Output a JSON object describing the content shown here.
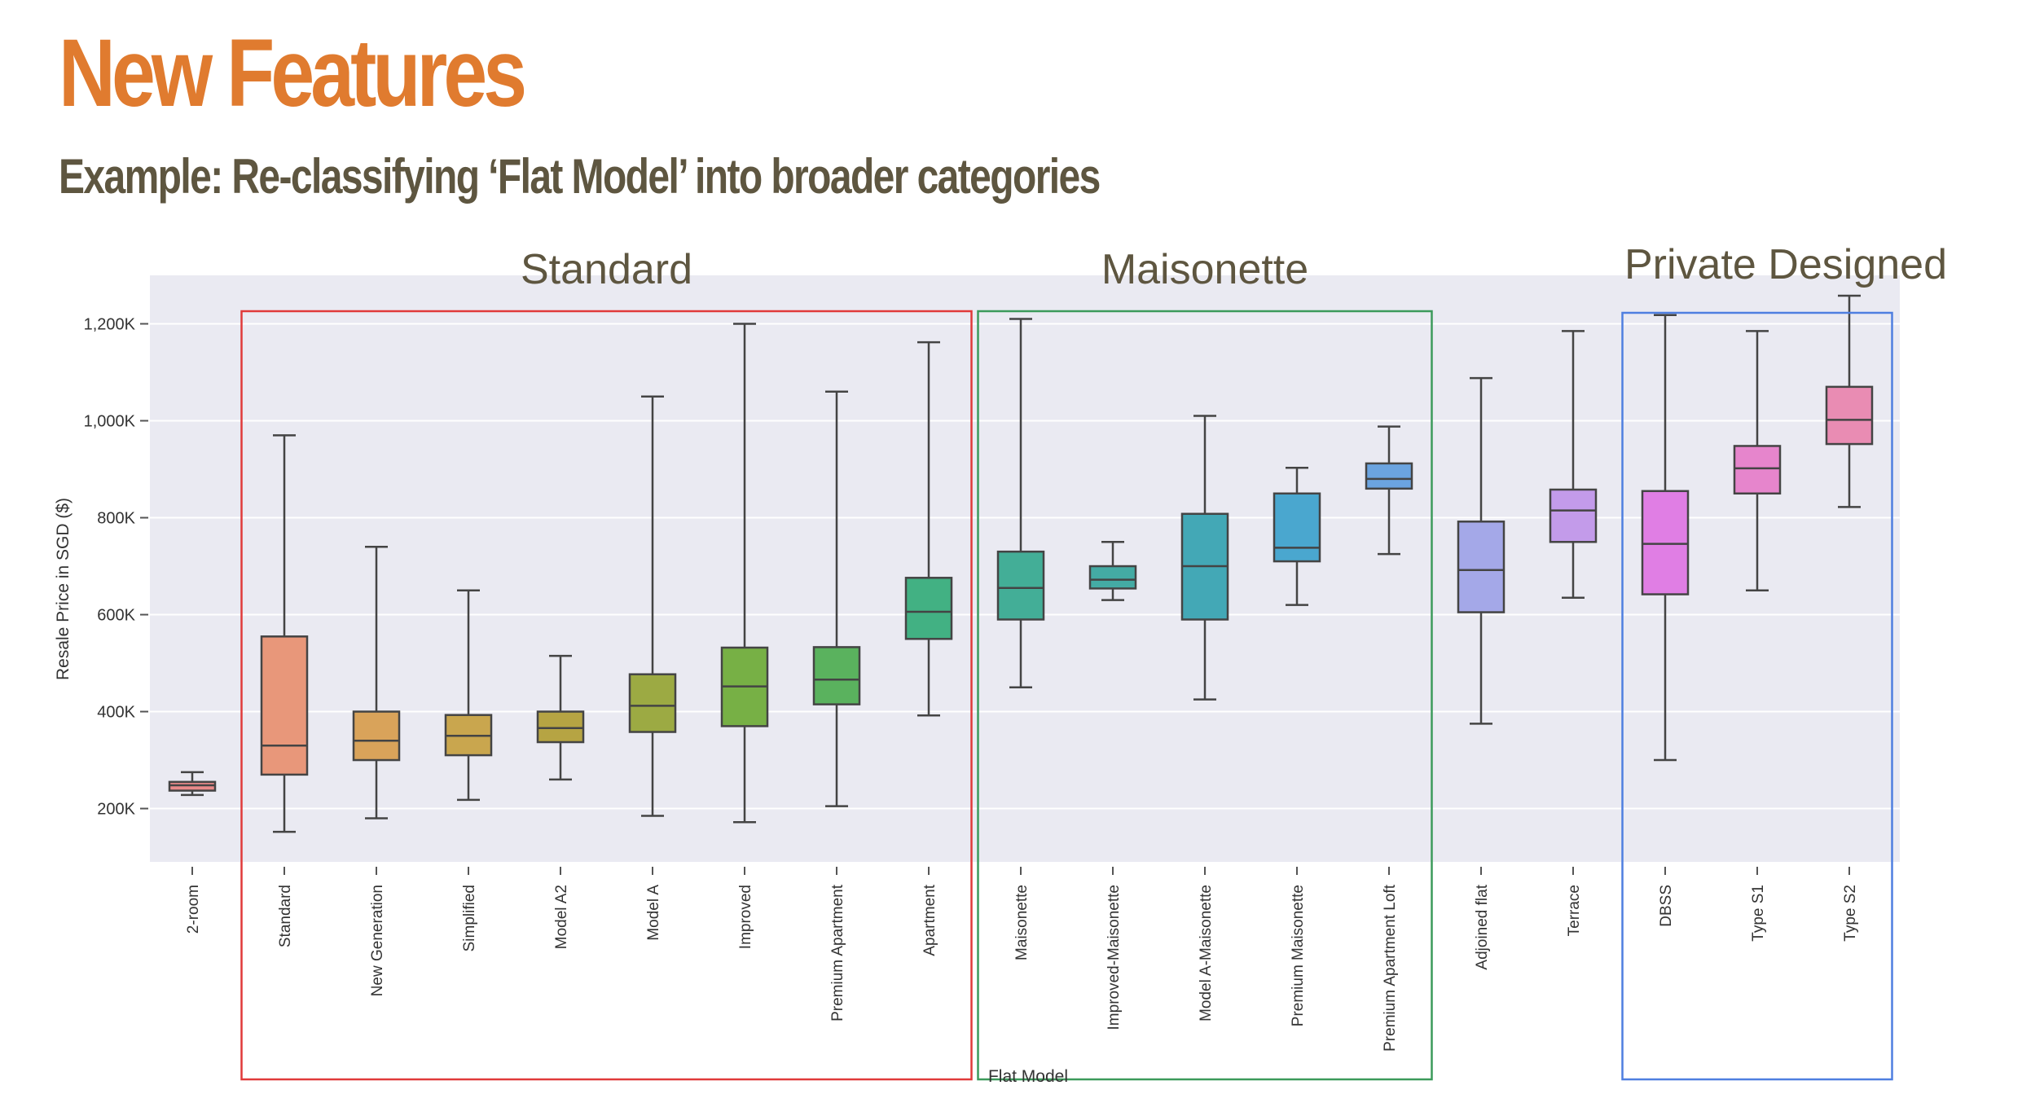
{
  "slide": {
    "title": "New Features",
    "subtitle": "Example: Re-classifying ‘Flat Model’ into broader categories",
    "title_color": "#E07B2F",
    "subtitle_color": "#5E5640"
  },
  "groups": [
    {
      "label": "Standard",
      "color": "#E03A3A"
    },
    {
      "label": "Maisonette",
      "color": "#3C9A5B"
    },
    {
      "label": "Private Designed",
      "color": "#4F7FE0"
    }
  ],
  "group_label_color": "#5E5640",
  "chart_data": {
    "type": "box",
    "xlabel": "Flat Model",
    "ylabel": "Resale Price in SGD ($)",
    "ylim": [
      90000,
      1300000
    ],
    "yticks": [
      200000,
      400000,
      600000,
      800000,
      1000000,
      1200000
    ],
    "ytick_labels": [
      "200K",
      "400K",
      "600K",
      "800K",
      "1,000K",
      "1,200K"
    ],
    "grid": true,
    "background": "#EAEAF2",
    "categories": [
      "2-room",
      "Standard",
      "New Generation",
      "Simplified",
      "Model A2",
      "Model A",
      "Improved",
      "Premium Apartment",
      "Apartment",
      "Maisonette",
      "Improved-Maisonette",
      "Model A-Maisonette",
      "Premium Maisonette",
      "Premium Apartment Loft",
      "Adjoined flat",
      "Terrace",
      "DBSS",
      "Type S1",
      "Type S2"
    ],
    "colors": [
      "#E98A8A",
      "#E8977A",
      "#D9A35A",
      "#C9A64E",
      "#B6A443",
      "#9CAA43",
      "#77B045",
      "#5AB25E",
      "#42B183",
      "#43AE97",
      "#44ABA4",
      "#43A8B6",
      "#4AA7CF",
      "#6BA4E0",
      "#A4A8E8",
      "#C39BEA",
      "#E07EE4",
      "#E685CC",
      "#E98CB3"
    ],
    "boxes": [
      {
        "whislo": 228000,
        "q1": 237000,
        "med": 248000,
        "q3": 255000,
        "whishi": 275000
      },
      {
        "whislo": 152000,
        "q1": 270000,
        "med": 330000,
        "q3": 555000,
        "whishi": 970000
      },
      {
        "whislo": 180000,
        "q1": 300000,
        "med": 340000,
        "q3": 400000,
        "whishi": 740000
      },
      {
        "whislo": 218000,
        "q1": 310000,
        "med": 350000,
        "q3": 393000,
        "whishi": 650000
      },
      {
        "whislo": 260000,
        "q1": 337000,
        "med": 366000,
        "q3": 400000,
        "whishi": 515000
      },
      {
        "whislo": 185000,
        "q1": 358000,
        "med": 412000,
        "q3": 477000,
        "whishi": 1050000
      },
      {
        "whislo": 172000,
        "q1": 370000,
        "med": 452000,
        "q3": 532000,
        "whishi": 1200000
      },
      {
        "whislo": 205000,
        "q1": 415000,
        "med": 466000,
        "q3": 533000,
        "whishi": 1060000
      },
      {
        "whislo": 392000,
        "q1": 550000,
        "med": 606000,
        "q3": 676000,
        "whishi": 1162000
      },
      {
        "whislo": 450000,
        "q1": 590000,
        "med": 655000,
        "q3": 730000,
        "whishi": 1210000
      },
      {
        "whislo": 630000,
        "q1": 654000,
        "med": 672000,
        "q3": 700000,
        "whishi": 750000
      },
      {
        "whislo": 425000,
        "q1": 590000,
        "med": 700000,
        "q3": 808000,
        "whishi": 1010000
      },
      {
        "whislo": 620000,
        "q1": 710000,
        "med": 738000,
        "q3": 850000,
        "whishi": 903000
      },
      {
        "whislo": 725000,
        "q1": 860000,
        "med": 880000,
        "q3": 912000,
        "whishi": 988000
      },
      {
        "whislo": 375000,
        "q1": 605000,
        "med": 692000,
        "q3": 792000,
        "whishi": 1088000
      },
      {
        "whislo": 635000,
        "q1": 750000,
        "med": 815000,
        "q3": 858000,
        "whishi": 1185000
      },
      {
        "whislo": 300000,
        "q1": 642000,
        "med": 746000,
        "q3": 855000,
        "whishi": 1218000
      },
      {
        "whislo": 650000,
        "q1": 850000,
        "med": 902000,
        "q3": 948000,
        "whishi": 1185000
      },
      {
        "whislo": 822000,
        "q1": 952000,
        "med": 1002000,
        "q3": 1070000,
        "whishi": 1258000
      }
    ]
  }
}
